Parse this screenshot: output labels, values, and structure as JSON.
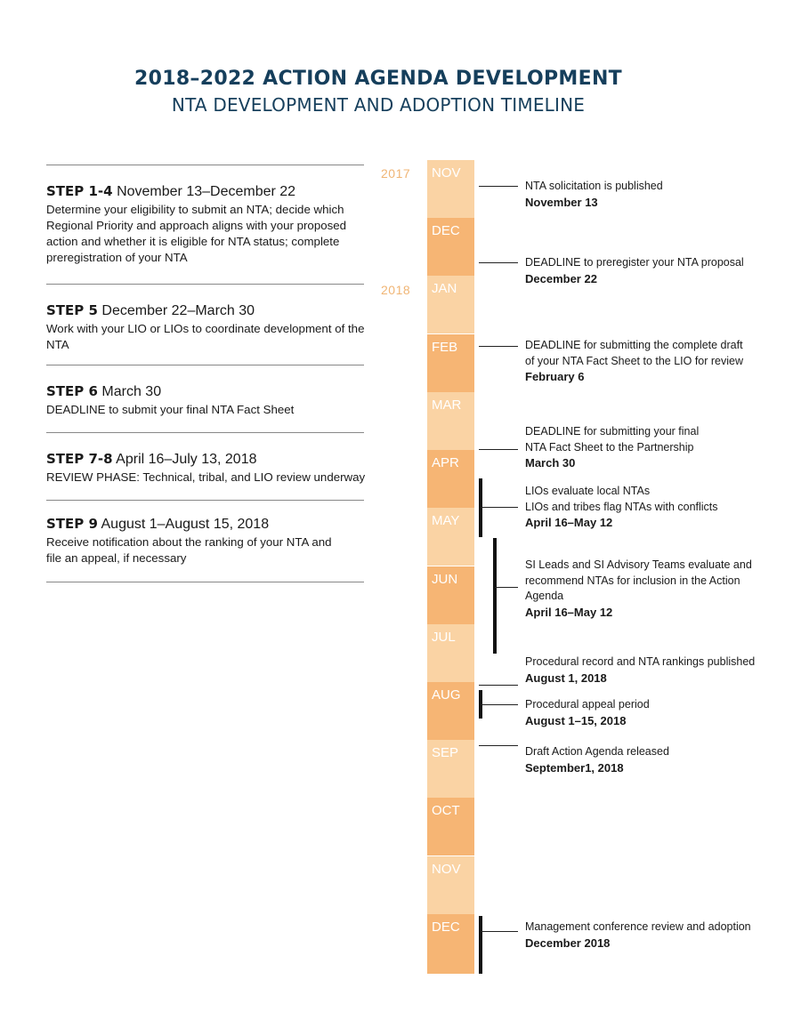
{
  "header": {
    "title": "2018–2022 ACTION AGENDA DEVELOPMENT",
    "subtitle": "NTA DEVELOPMENT AND ADOPTION TIMELINE"
  },
  "steps": [
    {
      "label": "STEP 1-4",
      "dates": "November 13–December 22",
      "description": "Determine your eligibility to submit an NTA; decide which Regional Priority and approach aligns with your proposed action and whether it is eligible for NTA status; complete preregistration of your NTA"
    },
    {
      "label": "STEP 5",
      "dates": "December 22–March 30",
      "description": "Work with your LIO or LIOs to coordinate development of the NTA"
    },
    {
      "label": "STEP 6",
      "dates": "March 30",
      "description": "DEADLINE to submit your final NTA Fact Sheet"
    },
    {
      "label": "STEP 7-8",
      "dates": "April 16–July 13, 2018",
      "description": "REVIEW PHASE: Technical, tribal, and LIO review underway"
    },
    {
      "label": "STEP 9",
      "dates": "August 1–August 15, 2018",
      "description": "Receive notification about the ranking of your NTA and file an appeal, if necessary"
    }
  ],
  "timeline": {
    "years": [
      "2017",
      "2018"
    ],
    "months": [
      "NOV",
      "DEC",
      "JAN",
      "FEB",
      "MAR",
      "APR",
      "MAY",
      "JUN",
      "JUL",
      "AUG",
      "SEP",
      "OCT",
      "NOV",
      "DEC"
    ],
    "colors": {
      "light": "#fad3a4",
      "dark": "#f6b574",
      "year": "#f0b575",
      "title": "#163f5c"
    }
  },
  "events": [
    {
      "text": [
        "NTA solicitation is published"
      ],
      "date": "November 13"
    },
    {
      "text": [
        "DEADLINE to preregister your NTA proposal"
      ],
      "date": "December 22"
    },
    {
      "text": [
        "DEADLINE for submitting the complete draft",
        "of your NTA Fact Sheet to the LIO for review"
      ],
      "date": "February 6"
    },
    {
      "text": [
        "DEADLINE for submitting your final",
        "NTA Fact Sheet to the Partnership"
      ],
      "date": "March 30"
    },
    {
      "text": [
        "LIOs evaluate local NTAs",
        "LIOs and tribes flag NTAs with conflicts"
      ],
      "date": "April 16–May 12"
    },
    {
      "text": [
        "SI Leads and SI Advisory Teams evaluate and",
        "recommend NTAs for inclusion in the Action",
        "Agenda"
      ],
      "date": "April 16–May 12"
    },
    {
      "text": [
        "Procedural record and NTA rankings published"
      ],
      "date": "August 1,  2018"
    },
    {
      "text": [
        "Procedural appeal period"
      ],
      "date": "August 1–15,  2018"
    },
    {
      "text": [
        "Draft Action Agenda released"
      ],
      "date": "September1, 2018"
    },
    {
      "text": [
        "Management conference review and adoption"
      ],
      "date": "December 2018"
    }
  ]
}
